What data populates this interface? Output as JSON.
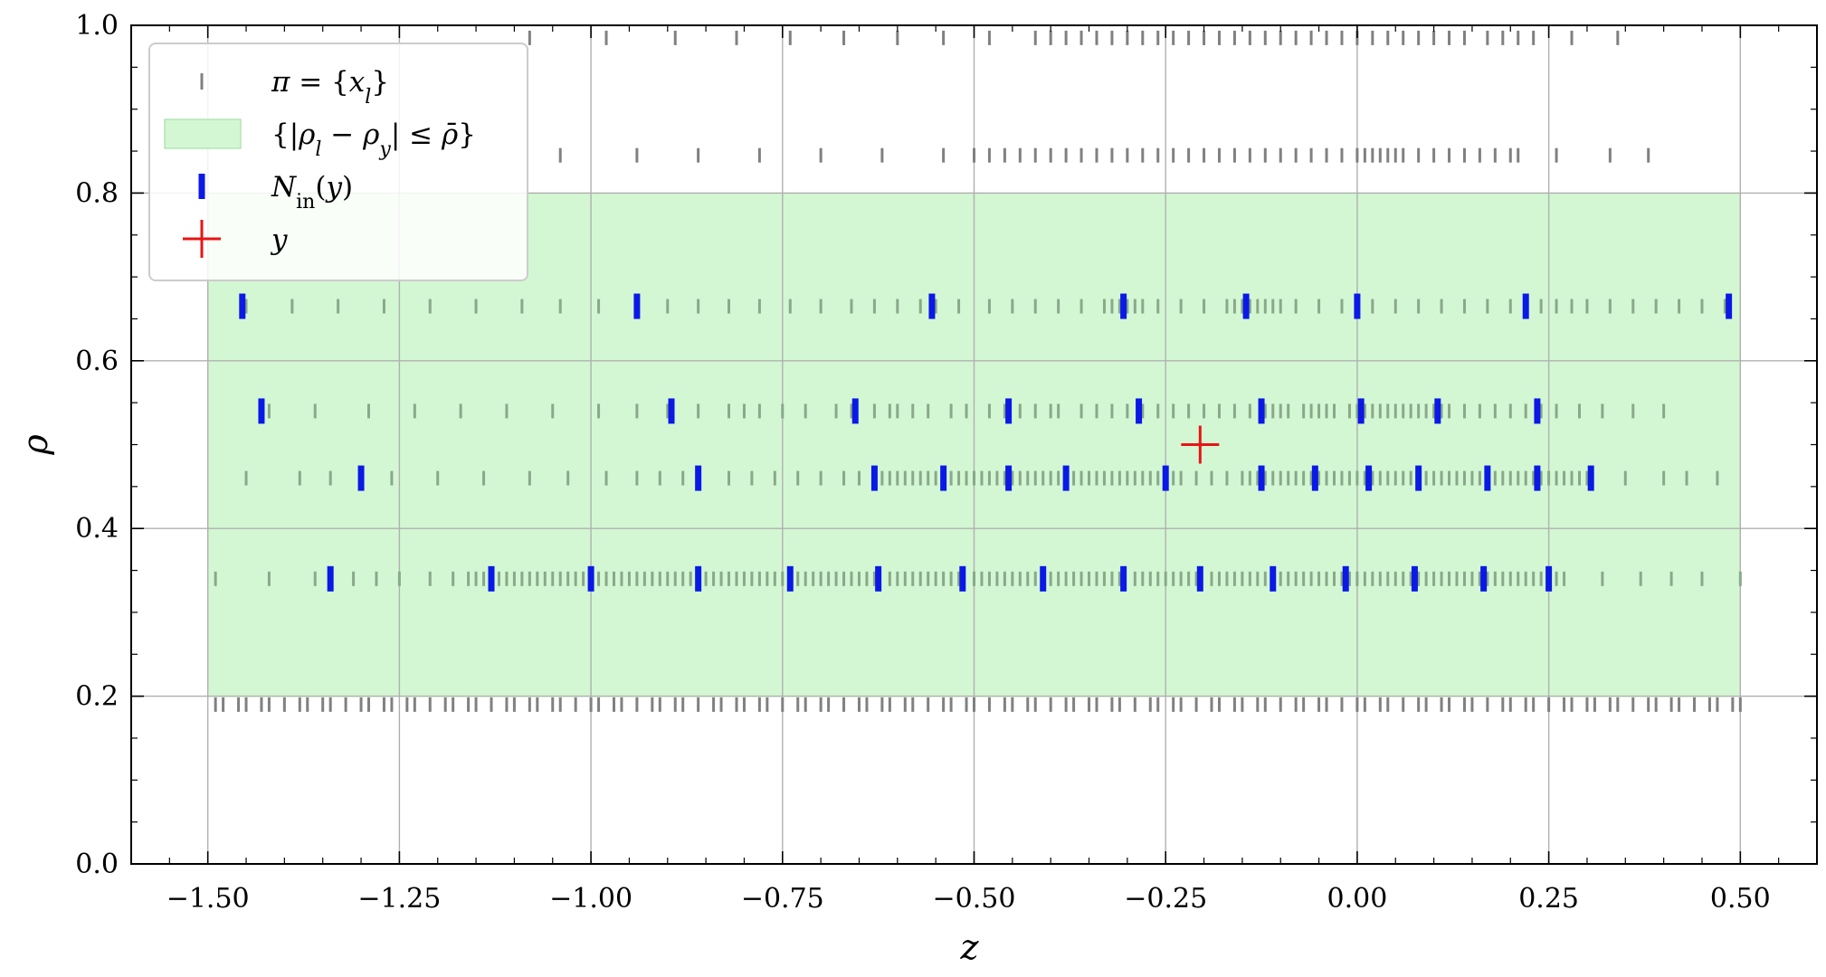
{
  "chart_data": {
    "type": "scatter",
    "xlabel": "z",
    "ylabel": "ρ",
    "xlim": [
      -1.6,
      0.6
    ],
    "ylim": [
      0.0,
      1.0
    ],
    "x_ticks": [
      -1.5,
      -1.25,
      -1.0,
      -0.75,
      -0.5,
      -0.25,
      0.0,
      0.25,
      0.5
    ],
    "x_tick_labels": [
      "−1.50",
      "−1.25",
      "−1.00",
      "−0.75",
      "−0.50",
      "−0.25",
      "0.00",
      "0.25",
      "0.50"
    ],
    "y_ticks": [
      0.0,
      0.2,
      0.4,
      0.6,
      0.8,
      1.0
    ],
    "y_tick_labels": [
      "0.0",
      "0.2",
      "0.4",
      "0.6",
      "0.8",
      "1.0"
    ],
    "grid": true,
    "legend_position": "top-left",
    "legend": [
      {
        "label": "π = {x_l}",
        "marker": "gray-tick"
      },
      {
        "label": "{|ρ_l − ρ_y| ≤ ρ̄}",
        "marker": "green-patch"
      },
      {
        "label": "N_in(y)",
        "marker": "blue-tick"
      },
      {
        "label": "y",
        "marker": "red-plus"
      }
    ],
    "region": {
      "x": [
        -1.5,
        0.5
      ],
      "y": [
        0.2,
        0.8
      ],
      "color": "#d3f7d3",
      "edge": "#a6e0a6"
    },
    "colors": {
      "partition": "#808080",
      "partition_in_region": "#8aa88a",
      "neighbors": "#0a19e6",
      "query": "#e81414"
    },
    "partition_rows": [
      {
        "rho": 0.19,
        "x": [
          -1.49,
          -1.48,
          -1.46,
          -1.45,
          -1.43,
          -1.42,
          -1.4,
          -1.38,
          -1.37,
          -1.35,
          -1.34,
          -1.32,
          -1.3,
          -1.29,
          -1.27,
          -1.26,
          -1.24,
          -1.23,
          -1.21,
          -1.19,
          -1.18,
          -1.16,
          -1.15,
          -1.13,
          -1.11,
          -1.1,
          -1.08,
          -1.07,
          -1.05,
          -1.04,
          -1.02,
          -1.0,
          -0.99,
          -0.97,
          -0.96,
          -0.94,
          -0.92,
          -0.91,
          -0.89,
          -0.88,
          -0.86,
          -0.84,
          -0.83,
          -0.81,
          -0.8,
          -0.78,
          -0.77,
          -0.75,
          -0.73,
          -0.72,
          -0.7,
          -0.69,
          -0.67,
          -0.65,
          -0.64,
          -0.62,
          -0.61,
          -0.59,
          -0.58,
          -0.56,
          -0.54,
          -0.53,
          -0.51,
          -0.5,
          -0.48,
          -0.46,
          -0.45,
          -0.43,
          -0.42,
          -0.4,
          -0.38,
          -0.37,
          -0.35,
          -0.34,
          -0.32,
          -0.31,
          -0.29,
          -0.27,
          -0.26,
          -0.24,
          -0.23,
          -0.21,
          -0.19,
          -0.18,
          -0.16,
          -0.15,
          -0.13,
          -0.12,
          -0.1,
          -0.08,
          -0.07,
          -0.05,
          -0.04,
          -0.02,
          0.0,
          0.01,
          0.03,
          0.04,
          0.06,
          0.08,
          0.09,
          0.11,
          0.12,
          0.14,
          0.15,
          0.17,
          0.19,
          0.2,
          0.22,
          0.23,
          0.25,
          0.27,
          0.28,
          0.3,
          0.31,
          0.33,
          0.34,
          0.36,
          0.38,
          0.39,
          0.41,
          0.42,
          0.44,
          0.46,
          0.47,
          0.49,
          0.5
        ]
      },
      {
        "rho": 0.34,
        "x": [
          -1.49,
          -1.42,
          -1.36,
          -1.31,
          -1.28,
          -1.25,
          -1.21,
          -1.18,
          -1.16,
          -1.15,
          -1.14,
          -1.13,
          -1.12,
          -1.11,
          -1.1,
          -1.09,
          -1.08,
          -1.07,
          -1.06,
          -1.05,
          -1.04,
          -1.03,
          -1.02,
          -1.01,
          -0.99,
          -0.98,
          -0.97,
          -0.96,
          -0.95,
          -0.94,
          -0.93,
          -0.92,
          -0.91,
          -0.9,
          -0.89,
          -0.88,
          -0.87,
          -0.85,
          -0.84,
          -0.83,
          -0.82,
          -0.81,
          -0.8,
          -0.79,
          -0.78,
          -0.77,
          -0.76,
          -0.75,
          -0.73,
          -0.72,
          -0.71,
          -0.7,
          -0.69,
          -0.68,
          -0.67,
          -0.66,
          -0.65,
          -0.64,
          -0.63,
          -0.61,
          -0.6,
          -0.59,
          -0.58,
          -0.57,
          -0.56,
          -0.55,
          -0.54,
          -0.53,
          -0.52,
          -0.5,
          -0.49,
          -0.48,
          -0.47,
          -0.46,
          -0.45,
          -0.44,
          -0.43,
          -0.42,
          -0.4,
          -0.39,
          -0.38,
          -0.37,
          -0.36,
          -0.35,
          -0.34,
          -0.33,
          -0.32,
          -0.31,
          -0.29,
          -0.28,
          -0.27,
          -0.26,
          -0.25,
          -0.24,
          -0.23,
          -0.22,
          -0.21,
          -0.19,
          -0.18,
          -0.17,
          -0.16,
          -0.15,
          -0.14,
          -0.13,
          -0.12,
          -0.11,
          -0.1,
          -0.09,
          -0.08,
          -0.07,
          -0.06,
          -0.05,
          -0.04,
          -0.03,
          -0.02,
          -0.01,
          0.0,
          0.01,
          0.02,
          0.03,
          0.04,
          0.05,
          0.06,
          0.07,
          0.08,
          0.09,
          0.1,
          0.11,
          0.12,
          0.13,
          0.14,
          0.15,
          0.16,
          0.17,
          0.18,
          0.19,
          0.2,
          0.21,
          0.22,
          0.23,
          0.24,
          0.25,
          0.26,
          0.27,
          0.32,
          0.37,
          0.41,
          0.45,
          0.5
        ]
      },
      {
        "rho": 0.46,
        "x": [
          -1.45,
          -1.38,
          -1.34,
          -1.3,
          -1.26,
          -1.2,
          -1.14,
          -1.08,
          -1.03,
          -0.98,
          -0.94,
          -0.91,
          -0.88,
          -0.86,
          -0.82,
          -0.79,
          -0.76,
          -0.73,
          -0.7,
          -0.67,
          -0.65,
          -0.63,
          -0.62,
          -0.61,
          -0.6,
          -0.59,
          -0.58,
          -0.57,
          -0.56,
          -0.55,
          -0.54,
          -0.53,
          -0.52,
          -0.51,
          -0.5,
          -0.49,
          -0.48,
          -0.47,
          -0.46,
          -0.45,
          -0.44,
          -0.43,
          -0.42,
          -0.41,
          -0.4,
          -0.39,
          -0.38,
          -0.37,
          -0.36,
          -0.35,
          -0.34,
          -0.33,
          -0.32,
          -0.31,
          -0.3,
          -0.29,
          -0.28,
          -0.27,
          -0.26,
          -0.25,
          -0.24,
          -0.23,
          -0.21,
          -0.19,
          -0.17,
          -0.15,
          -0.14,
          -0.13,
          -0.12,
          -0.11,
          -0.1,
          -0.09,
          -0.08,
          -0.07,
          -0.06,
          -0.05,
          -0.04,
          -0.03,
          -0.02,
          -0.01,
          0.0,
          0.01,
          0.02,
          0.03,
          0.04,
          0.05,
          0.06,
          0.07,
          0.08,
          0.09,
          0.1,
          0.11,
          0.12,
          0.13,
          0.14,
          0.15,
          0.16,
          0.17,
          0.18,
          0.19,
          0.2,
          0.21,
          0.22,
          0.23,
          0.24,
          0.25,
          0.26,
          0.27,
          0.28,
          0.29,
          0.3,
          0.35,
          0.4,
          0.43,
          0.47
        ]
      },
      {
        "rho": 0.54,
        "x": [
          -1.42,
          -1.36,
          -1.29,
          -1.23,
          -1.17,
          -1.11,
          -1.05,
          -0.99,
          -0.94,
          -0.9,
          -0.86,
          -0.82,
          -0.8,
          -0.78,
          -0.75,
          -0.72,
          -0.68,
          -0.66,
          -0.63,
          -0.61,
          -0.6,
          -0.58,
          -0.56,
          -0.53,
          -0.51,
          -0.48,
          -0.46,
          -0.44,
          -0.42,
          -0.4,
          -0.39,
          -0.36,
          -0.34,
          -0.32,
          -0.3,
          -0.28,
          -0.26,
          -0.24,
          -0.22,
          -0.2,
          -0.18,
          -0.16,
          -0.14,
          -0.12,
          -0.11,
          -0.1,
          -0.09,
          -0.07,
          -0.06,
          -0.05,
          -0.04,
          -0.03,
          -0.01,
          0.0,
          0.01,
          0.02,
          0.03,
          0.04,
          0.05,
          0.06,
          0.07,
          0.08,
          0.09,
          0.1,
          0.11,
          0.12,
          0.14,
          0.16,
          0.18,
          0.2,
          0.22,
          0.24,
          0.26,
          0.29,
          0.32,
          0.36,
          0.4
        ]
      },
      {
        "rho": 0.665,
        "x": [
          -1.45,
          -1.39,
          -1.33,
          -1.27,
          -1.21,
          -1.15,
          -1.09,
          -1.04,
          -0.99,
          -0.94,
          -0.9,
          -0.86,
          -0.82,
          -0.78,
          -0.74,
          -0.7,
          -0.66,
          -0.63,
          -0.6,
          -0.57,
          -0.55,
          -0.52,
          -0.48,
          -0.45,
          -0.42,
          -0.39,
          -0.36,
          -0.33,
          -0.32,
          -0.31,
          -0.3,
          -0.29,
          -0.28,
          -0.26,
          -0.23,
          -0.2,
          -0.17,
          -0.16,
          -0.15,
          -0.14,
          -0.13,
          -0.12,
          -0.11,
          -0.1,
          -0.08,
          -0.05,
          -0.02,
          0.0,
          0.02,
          0.05,
          0.08,
          0.11,
          0.14,
          0.17,
          0.2,
          0.22,
          0.24,
          0.26,
          0.28,
          0.3,
          0.33,
          0.36,
          0.39,
          0.42,
          0.45,
          0.48
        ]
      },
      {
        "rho": 0.845,
        "x": [
          -1.04,
          -0.94,
          -0.86,
          -0.78,
          -0.7,
          -0.62,
          -0.54,
          -0.5,
          -0.48,
          -0.46,
          -0.44,
          -0.42,
          -0.4,
          -0.38,
          -0.36,
          -0.34,
          -0.32,
          -0.3,
          -0.28,
          -0.26,
          -0.24,
          -0.22,
          -0.2,
          -0.18,
          -0.16,
          -0.14,
          -0.12,
          -0.1,
          -0.08,
          -0.06,
          -0.04,
          -0.02,
          0.0,
          0.01,
          0.02,
          0.03,
          0.04,
          0.05,
          0.06,
          0.08,
          0.1,
          0.12,
          0.14,
          0.16,
          0.18,
          0.2,
          0.21,
          0.26,
          0.33,
          0.38
        ]
      },
      {
        "rho": 0.985,
        "x": [
          -1.08,
          -0.98,
          -0.89,
          -0.81,
          -0.74,
          -0.67,
          -0.6,
          -0.54,
          -0.48,
          -0.42,
          -0.4,
          -0.38,
          -0.36,
          -0.34,
          -0.32,
          -0.3,
          -0.28,
          -0.26,
          -0.24,
          -0.22,
          -0.2,
          -0.18,
          -0.16,
          -0.14,
          -0.12,
          -0.1,
          -0.08,
          -0.06,
          -0.04,
          -0.02,
          0.0,
          0.02,
          0.04,
          0.06,
          0.08,
          0.1,
          0.12,
          0.14,
          0.17,
          0.19,
          0.21,
          0.23,
          0.28,
          0.34
        ]
      }
    ],
    "neighbors": [
      {
        "rho": 0.34,
        "x": [
          -1.34,
          -1.13,
          -1.0,
          -0.86,
          -0.74,
          -0.625,
          -0.515,
          -0.41,
          -0.305,
          -0.205,
          -0.11,
          -0.015,
          0.075,
          0.165,
          0.25
        ]
      },
      {
        "rho": 0.46,
        "x": [
          -1.3,
          -0.86,
          -0.63,
          -0.54,
          -0.455,
          -0.38,
          -0.25,
          -0.125,
          -0.055,
          0.015,
          0.08,
          0.17,
          0.235,
          0.305
        ]
      },
      {
        "rho": 0.54,
        "x": [
          -1.43,
          -0.895,
          -0.655,
          -0.455,
          -0.285,
          -0.125,
          0.005,
          0.105,
          0.235
        ]
      },
      {
        "rho": 0.665,
        "x": [
          -1.455,
          -0.94,
          -0.555,
          -0.305,
          -0.145,
          0.0,
          0.22,
          0.485
        ]
      }
    ],
    "query": {
      "x": -0.205,
      "rho": 0.5
    }
  }
}
